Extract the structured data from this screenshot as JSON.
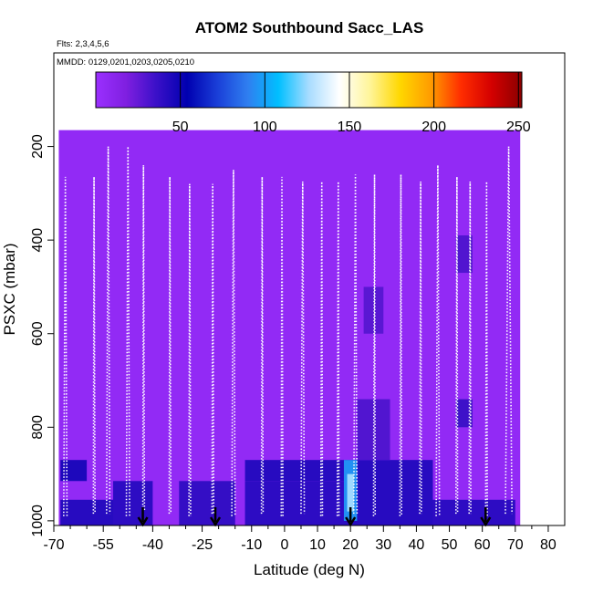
{
  "chart_data": {
    "type": "heatmap",
    "title": "ATOM2 Southbound Sacc_LAS",
    "subtitle_flights": "Flts: 2,3,4,5,6",
    "subtitle_dates": "MMDD: 0129,0201,0203,0205,0210",
    "xlabel": "Latitude (deg N)",
    "ylabel": "PSXC (mbar)",
    "xlim": [
      -70,
      85
    ],
    "ylim": [
      1010,
      0
    ],
    "x_ticks": [
      "-70",
      "-55",
      "-40",
      "-25",
      "-10",
      "0",
      "10",
      "20",
      "30",
      "40",
      "50",
      "60",
      "70",
      "80"
    ],
    "x_tick_values": [
      -70,
      -55,
      -40,
      -25,
      -10,
      0,
      10,
      20,
      30,
      40,
      50,
      60,
      70,
      80
    ],
    "x_minor_ticks": [
      -65,
      -60,
      -50,
      -45,
      -35,
      -30,
      -20,
      -15,
      -5,
      5,
      15,
      25,
      35,
      45,
      55,
      65,
      75
    ],
    "y_ticks": [
      "200",
      "400",
      "600",
      "800",
      "1000"
    ],
    "y_tick_values": [
      200,
      400,
      600,
      800,
      1000
    ],
    "colorbar": {
      "range": [
        0,
        252
      ],
      "ticks": [
        "50",
        "100",
        "150",
        "200",
        "250"
      ],
      "tick_values": [
        50,
        100,
        150,
        200,
        250
      ],
      "colors": [
        "#9b30ff",
        "#7f1fe0",
        "#3a10c8",
        "#0000b0",
        "#1a3fd8",
        "#2f7ff0",
        "#00bfff",
        "#a8dcff",
        "#ffffff",
        "#fff59a",
        "#ffd700",
        "#ff9c00",
        "#ff2d00",
        "#d40000",
        "#8b0000"
      ]
    },
    "grid": false,
    "background_region": {
      "x": [
        -68.5,
        71.5
      ],
      "p_top": 165,
      "p_bottom": 1010
    },
    "enhanced_cells": [
      {
        "x": [
          -68,
          -60
        ],
        "p": [
          870,
          915
        ],
        "value": 45
      },
      {
        "x": [
          -68,
          -50
        ],
        "p": [
          955,
          1010
        ],
        "value": 42
      },
      {
        "x": [
          -52,
          -40
        ],
        "p": [
          915,
          1010
        ],
        "value": 40
      },
      {
        "x": [
          -32,
          -15
        ],
        "p": [
          915,
          1010
        ],
        "value": 38
      },
      {
        "x": [
          -12,
          20
        ],
        "p": [
          870,
          915
        ],
        "value": 42
      },
      {
        "x": [
          -12,
          20
        ],
        "p": [
          915,
          1010
        ],
        "value": 40
      },
      {
        "x": [
          20,
          45
        ],
        "p": [
          870,
          1010
        ],
        "value": 42
      },
      {
        "x": [
          45,
          70
        ],
        "p": [
          955,
          1010
        ],
        "value": 40
      },
      {
        "x": [
          22,
          32
        ],
        "p": [
          740,
          870
        ],
        "value": 30
      },
      {
        "x": [
          24,
          30
        ],
        "p": [
          500,
          600
        ],
        "value": 28
      },
      {
        "x": [
          52,
          57
        ],
        "p": [
          390,
          470
        ],
        "value": 30
      },
      {
        "x": [
          52,
          57
        ],
        "p": [
          740,
          800
        ],
        "value": 35
      },
      {
        "x": [
          18,
          22
        ],
        "p": [
          870,
          1000
        ],
        "value": 95
      },
      {
        "x": [
          19,
          21
        ],
        "p": [
          900,
          980
        ],
        "value": 125
      }
    ],
    "profiles": [
      {
        "x": [
          -67,
          -66.5,
          -66
        ],
        "p_top": 265,
        "p_bottom": 990
      },
      {
        "x": [
          -58,
          -57.8,
          -57.5
        ],
        "p_top": 265,
        "p_bottom": 985
      },
      {
        "x": [
          -54,
          -53.5,
          -53
        ],
        "p_top": 200,
        "p_bottom": 985
      },
      {
        "x": [
          -48,
          -47.5,
          -47
        ],
        "p_top": 200,
        "p_bottom": 990
      },
      {
        "x": [
          -43,
          -42.8,
          -42.5
        ],
        "p_top": 240,
        "p_bottom": 980
      },
      {
        "x": [
          -35,
          -34.8,
          -34.5
        ],
        "p_top": 265,
        "p_bottom": 985
      },
      {
        "x": [
          -29,
          -28.8,
          -28.5
        ],
        "p_top": 280,
        "p_bottom": 990
      },
      {
        "x": [
          -22,
          -21.8,
          -21.5
        ],
        "p_top": 280,
        "p_bottom": 985
      },
      {
        "x": [
          -16,
          -15.5,
          -15
        ],
        "p_top": 250,
        "p_bottom": 990
      },
      {
        "x": [
          -7,
          -6.8,
          -6.5
        ],
        "p_top": 265,
        "p_bottom": 985
      },
      {
        "x": [
          -1,
          -0.8,
          -0.5
        ],
        "p_top": 265,
        "p_bottom": 990
      },
      {
        "x": [
          5,
          5.5,
          6
        ],
        "p_top": 275,
        "p_bottom": 985
      },
      {
        "x": [
          11,
          11.3,
          11.5
        ],
        "p_top": 275,
        "p_bottom": 990
      },
      {
        "x": [
          16,
          16.3,
          16.5
        ],
        "p_top": 275,
        "p_bottom": 990
      },
      {
        "x": [
          21,
          21.5,
          22
        ],
        "p_top": 260,
        "p_bottom": 985
      },
      {
        "x": [
          27,
          27.3,
          27.5
        ],
        "p_top": 260,
        "p_bottom": 990
      },
      {
        "x": [
          35,
          35.3,
          35.5
        ],
        "p_top": 260,
        "p_bottom": 990
      },
      {
        "x": [
          41,
          41.3,
          41.5
        ],
        "p_top": 275,
        "p_bottom": 985
      },
      {
        "x": [
          46,
          46.5,
          47
        ],
        "p_top": 240,
        "p_bottom": 990
      },
      {
        "x": [
          52,
          52.3,
          52.5
        ],
        "p_top": 265,
        "p_bottom": 985
      },
      {
        "x": [
          56,
          56.3,
          56.5
        ],
        "p_top": 275,
        "p_bottom": 985
      },
      {
        "x": [
          61,
          61.3,
          61.5
        ],
        "p_top": 275,
        "p_bottom": 990
      },
      {
        "x": [
          67,
          68,
          69
        ],
        "p_top": 200,
        "p_bottom": 985
      }
    ],
    "markers": [
      {
        "label": "arrow",
        "x": -43,
        "p": 1010
      },
      {
        "label": "arrow",
        "x": -21,
        "p": 1010
      },
      {
        "label": "arrow",
        "x": 20,
        "p": 1010
      },
      {
        "label": "arrow",
        "x": 61,
        "p": 1010
      }
    ]
  }
}
